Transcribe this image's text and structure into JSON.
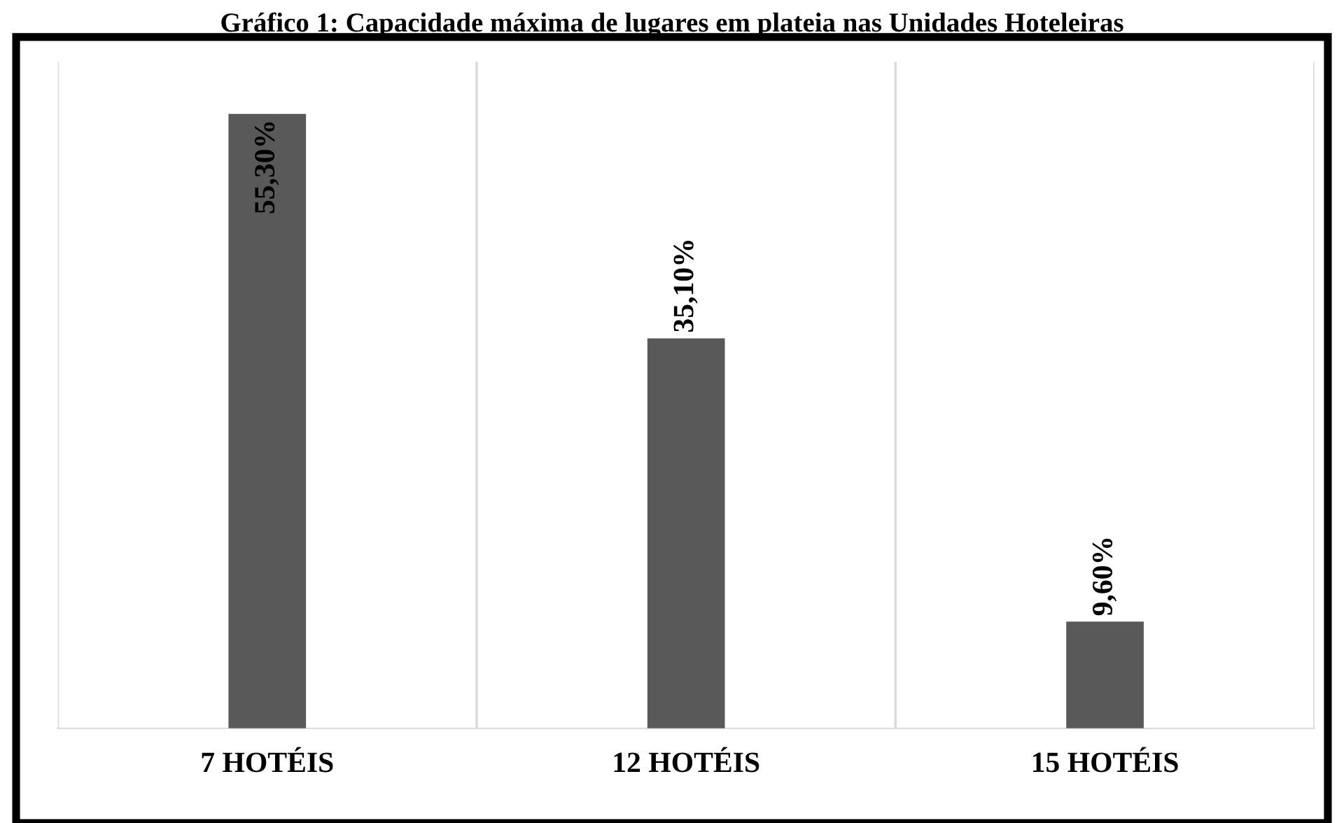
{
  "chart_data": {
    "type": "bar",
    "title": "Gráfico 1: Capacidade máxima de lugares em plateia nas Unidades Hoteleiras",
    "categories": [
      "7 HOTÉIS",
      "12 HOTÉIS",
      "15 HOTÉIS"
    ],
    "values": [
      55.3,
      35.1,
      9.6
    ],
    "color": "#595959",
    "value_labels": [
      "55,30%",
      "35,10%",
      "9,60%"
    ],
    "ylim": [
      0,
      60
    ],
    "tick_labels": "x",
    "grid": "x"
  }
}
